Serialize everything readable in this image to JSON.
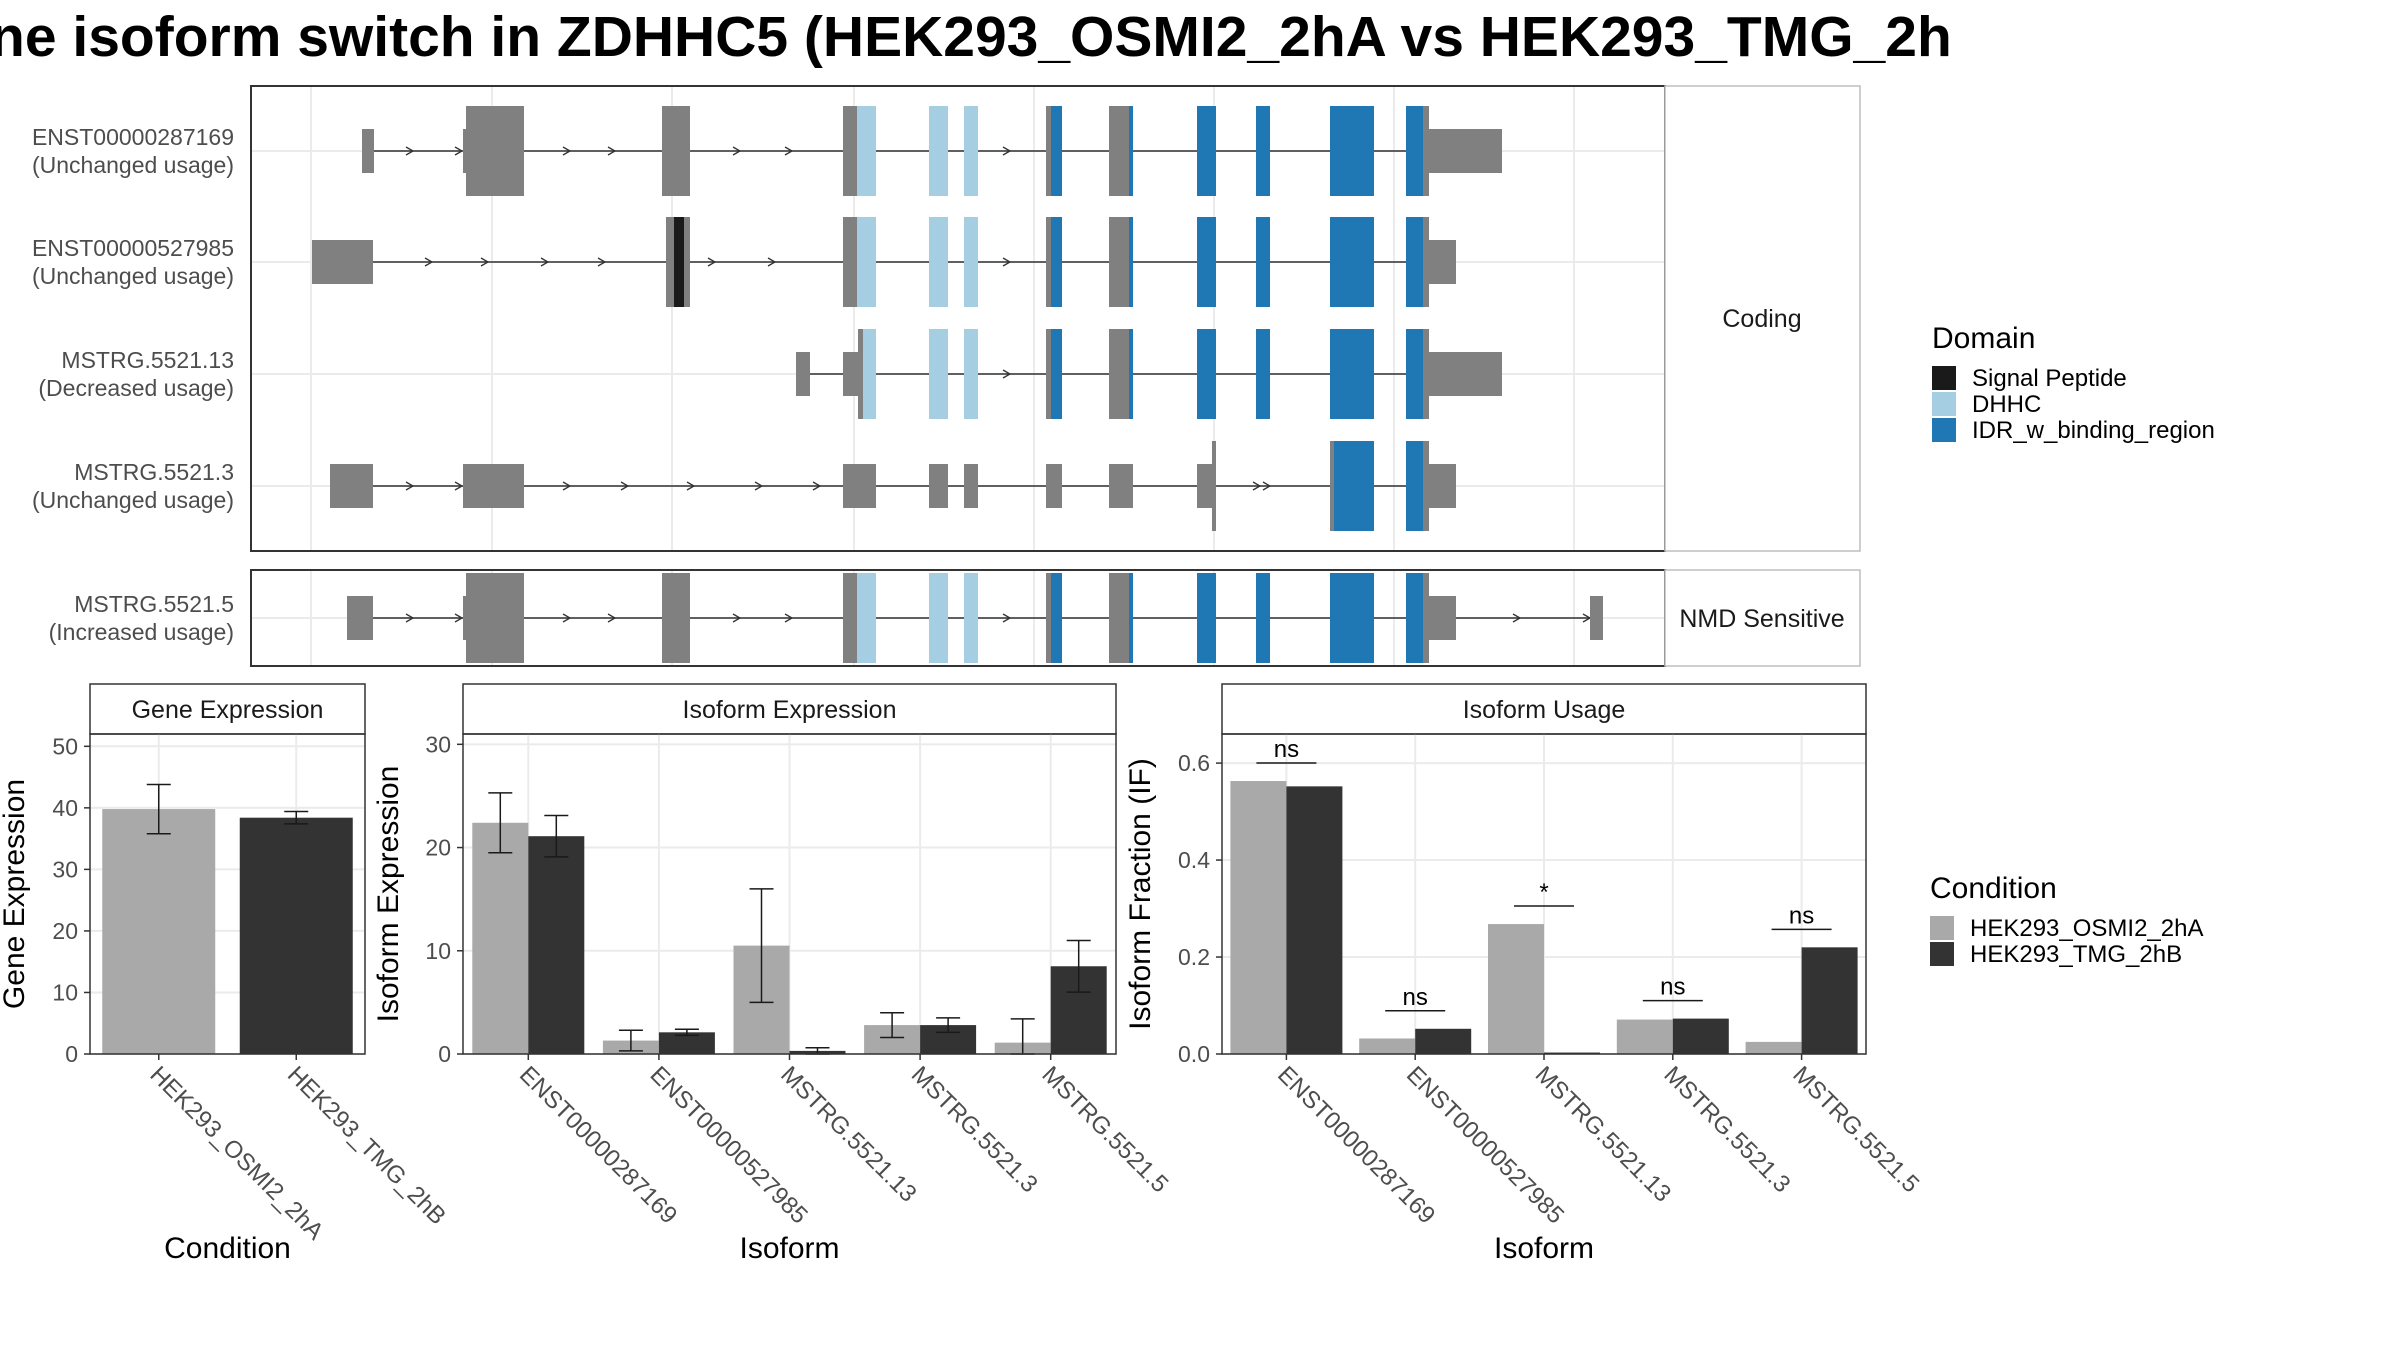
{
  "title": "ne isoform switch in ZDHHC5 (HEK293_OSMI2_2hA vs HEK293_TMG_2h",
  "structure_panel": {
    "strip_coding": "Coding",
    "strip_nmd": "NMD Sensitive",
    "transcripts": [
      {
        "id": "ENST00000287169",
        "usage": "(Unchanged usage)",
        "group": "coding"
      },
      {
        "id": "ENST00000527985",
        "usage": "(Unchanged usage)",
        "group": "coding"
      },
      {
        "id": "MSTRG.5521.13",
        "usage": "(Decreased usage)",
        "group": "coding"
      },
      {
        "id": "MSTRG.5521.3",
        "usage": "(Unchanged usage)",
        "group": "coding"
      },
      {
        "id": "MSTRG.5521.5",
        "usage": "(Increased usage)",
        "group": "nmd"
      }
    ]
  },
  "domain_legend": {
    "title": "Domain",
    "items": [
      {
        "label": "Signal Peptide",
        "color": "#1a1a1a"
      },
      {
        "label": "DHHC",
        "color": "#a6cee3"
      },
      {
        "label": "IDR_w_binding_region",
        "color": "#1f78b4"
      }
    ]
  },
  "condition_legend": {
    "title": "Condition",
    "items": [
      {
        "label": "HEK293_OSMI2_2hA",
        "color": "#a9a9a9"
      },
      {
        "label": "HEK293_TMG_2hB",
        "color": "#333333"
      }
    ]
  },
  "chart_data": [
    {
      "type": "bar",
      "title": "Gene Expression",
      "xlabel": "Condition",
      "ylabel": "Gene Expression",
      "categories": [
        "HEK293_OSMI2_2hA",
        "HEK293_TMG_2hB"
      ],
      "values": [
        39.8,
        38.4
      ],
      "errors": [
        4.0,
        1.0
      ],
      "colors": [
        "#a9a9a9",
        "#333333"
      ],
      "ylim": [
        0,
        52
      ],
      "yticks": [
        0,
        10,
        20,
        30,
        40,
        50
      ]
    },
    {
      "type": "bar",
      "title": "Isoform Expression",
      "xlabel": "Isoform",
      "ylabel": "Isoform Expression",
      "categories": [
        "ENST00000287169",
        "ENST00000527985",
        "MSTRG.5521.13",
        "MSTRG.5521.3",
        "MSTRG.5521.5"
      ],
      "series": [
        {
          "name": "HEK293_OSMI2_2hA",
          "values": [
            22.4,
            1.3,
            10.5,
            2.8,
            1.1
          ],
          "errors": [
            2.9,
            1.0,
            5.5,
            1.2,
            2.3
          ]
        },
        {
          "name": "HEK293_TMG_2hB",
          "values": [
            21.1,
            2.1,
            0.3,
            2.8,
            8.5
          ],
          "errors": [
            2.0,
            0.3,
            0.3,
            0.7,
            2.5
          ]
        }
      ],
      "ylim": [
        0,
        31
      ],
      "yticks": [
        0,
        10,
        20,
        30
      ]
    },
    {
      "type": "bar",
      "title": "Isoform Usage",
      "xlabel": "Isoform",
      "ylabel": "Isoform Fraction (IF)",
      "categories": [
        "ENST00000287169",
        "ENST00000527985",
        "MSTRG.5521.13",
        "MSTRG.5521.3",
        "MSTRG.5521.5"
      ],
      "series": [
        {
          "name": "HEK293_OSMI2_2hA",
          "values": [
            0.563,
            0.032,
            0.268,
            0.071,
            0.025
          ]
        },
        {
          "name": "HEK293_TMG_2hB",
          "values": [
            0.552,
            0.052,
            0.003,
            0.073,
            0.22
          ]
        }
      ],
      "significance": [
        "ns",
        "ns",
        "*",
        "ns",
        "ns"
      ],
      "ylim": [
        0,
        0.66
      ],
      "yticks": [
        "0.0",
        "0.2",
        "0.4",
        "0.6"
      ]
    }
  ]
}
